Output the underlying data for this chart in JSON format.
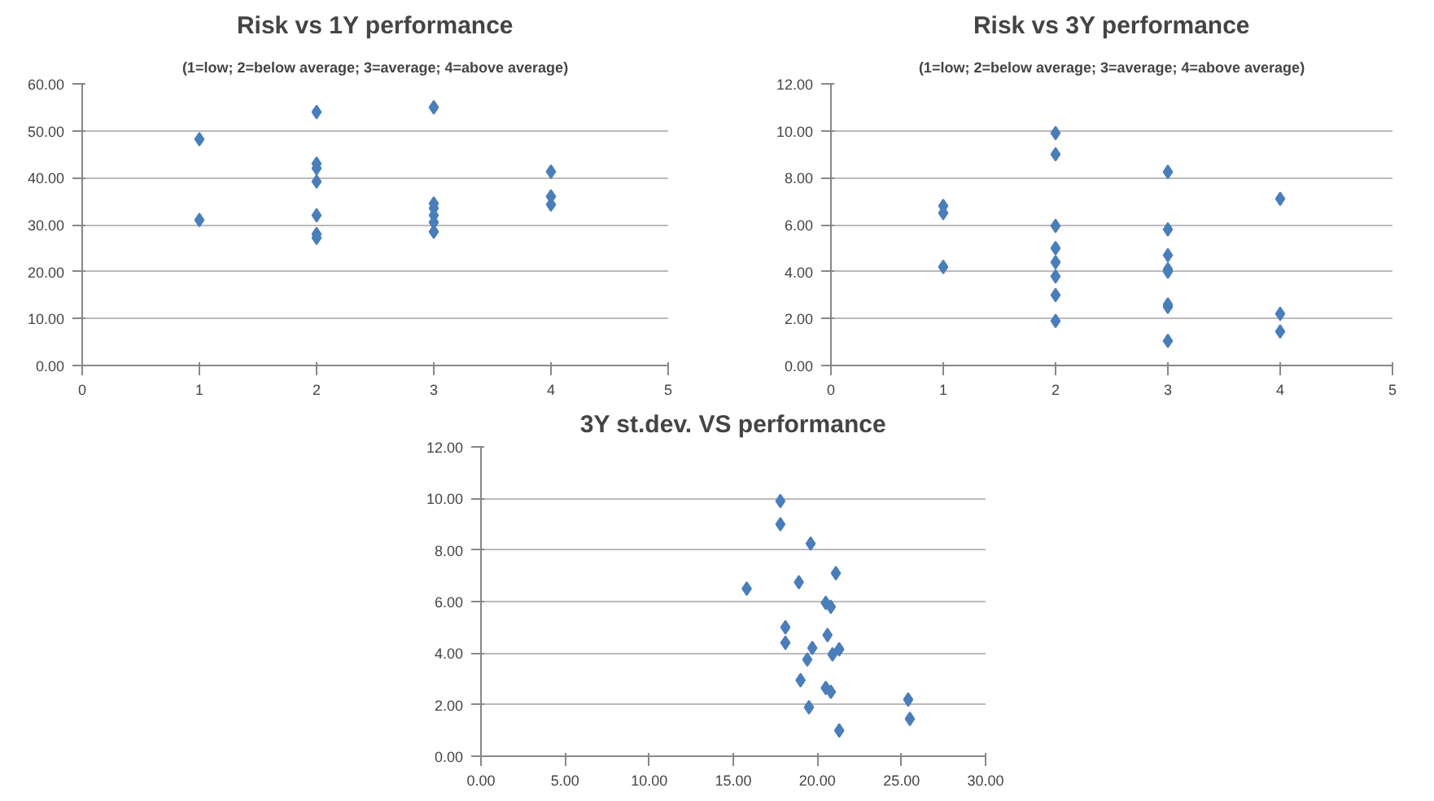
{
  "chart_data": [
    {
      "type": "scatter",
      "title": "Risk vs 1Y performance",
      "subtitle": "(1=low; 2=below average; 3=average; 4=above average)",
      "marker": "diamond",
      "grid": "y",
      "xlim": [
        0,
        5
      ],
      "xticks": [
        0,
        1,
        2,
        3,
        4,
        5
      ],
      "ylim": [
        0,
        60
      ],
      "yticks": [
        {
          "value": 0,
          "label": "0.00"
        },
        {
          "value": 10,
          "label": "10.00"
        },
        {
          "value": 20,
          "label": "20.00"
        },
        {
          "value": 30,
          "label": "30.00"
        },
        {
          "value": 40,
          "label": "40.00"
        },
        {
          "value": 50,
          "label": "50.00"
        },
        {
          "value": 60,
          "label": "60.00"
        }
      ],
      "series": [
        {
          "color": "#4a7ebb",
          "x": [
            1,
            1,
            2,
            2,
            2,
            2,
            2,
            2,
            2,
            3,
            3,
            3,
            3,
            3,
            3,
            4,
            4,
            4
          ],
          "values": [
            48.2,
            31,
            54,
            43,
            42,
            39.2,
            32,
            28,
            27.2,
            55,
            34.5,
            33.5,
            32,
            30.5,
            28.5,
            41.3,
            36,
            34.3
          ]
        }
      ]
    },
    {
      "type": "scatter",
      "title": "Risk vs 3Y performance",
      "subtitle": "(1=low; 2=below average; 3=average; 4=above average)",
      "marker": "diamond",
      "grid": "y",
      "xlim": [
        0,
        5
      ],
      "xticks": [
        0,
        1,
        2,
        3,
        4,
        5
      ],
      "ylim": [
        0,
        12
      ],
      "yticks": [
        {
          "value": 0,
          "label": "0.00"
        },
        {
          "value": 2,
          "label": "2.00"
        },
        {
          "value": 4,
          "label": "4.00"
        },
        {
          "value": 6,
          "label": "6.00"
        },
        {
          "value": 8,
          "label": "8.00"
        },
        {
          "value": 10,
          "label": "10.00"
        },
        {
          "value": 12,
          "label": "12.00"
        }
      ],
      "series": [
        {
          "color": "#4a7ebb",
          "x": [
            1,
            1,
            1,
            2,
            2,
            2,
            2,
            2,
            2,
            2,
            2,
            3,
            3,
            3,
            3,
            3,
            3,
            3,
            3,
            4,
            4,
            4
          ],
          "values": [
            6.8,
            6.5,
            4.2,
            9.9,
            9.0,
            5.95,
            5.0,
            4.4,
            3.8,
            3.0,
            1.9,
            8.25,
            5.8,
            4.7,
            4.1,
            4.0,
            2.6,
            2.5,
            1.05,
            7.1,
            2.2,
            1.45
          ]
        }
      ]
    },
    {
      "type": "scatter",
      "title": "3Y st.dev. VS performance",
      "marker": "diamond",
      "grid": "y",
      "xlim": [
        0,
        30
      ],
      "xticks": [
        {
          "value": 0,
          "label": "0.00"
        },
        {
          "value": 5,
          "label": "5.00"
        },
        {
          "value": 10,
          "label": "10.00"
        },
        {
          "value": 15,
          "label": "15.00"
        },
        {
          "value": 20,
          "label": "20.00"
        },
        {
          "value": 25,
          "label": "25.00"
        },
        {
          "value": 30,
          "label": "30.00"
        }
      ],
      "ylim": [
        0,
        12
      ],
      "yticks": [
        {
          "value": 0,
          "label": "0.00"
        },
        {
          "value": 2,
          "label": "2.00"
        },
        {
          "value": 4,
          "label": "4.00"
        },
        {
          "value": 6,
          "label": "6.00"
        },
        {
          "value": 8,
          "label": "8.00"
        },
        {
          "value": 10,
          "label": "10.00"
        },
        {
          "value": 12,
          "label": "12.00"
        }
      ],
      "series": [
        {
          "color": "#4a7ebb",
          "x": [
            17.8,
            17.8,
            19.6,
            15.8,
            18.9,
            21.1,
            20.5,
            20.8,
            18.1,
            18.1,
            20.6,
            19.7,
            19.4,
            21.3,
            20.9,
            19.0,
            20.5,
            20.8,
            19.5,
            21.3,
            25.4,
            25.5
          ],
          "values": [
            9.9,
            9.0,
            8.25,
            6.5,
            6.75,
            7.1,
            5.95,
            5.8,
            5.0,
            4.4,
            4.7,
            4.2,
            3.75,
            4.15,
            3.95,
            2.95,
            2.65,
            2.5,
            1.9,
            1.0,
            2.2,
            1.45
          ]
        }
      ]
    }
  ]
}
